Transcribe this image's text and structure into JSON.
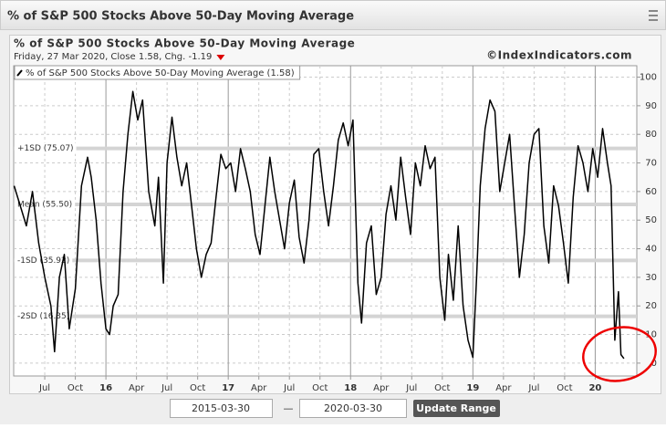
{
  "header": {
    "title": "% of S&P 500 Stocks Above 50-Day Moving Average"
  },
  "chart_data": {
    "type": "line",
    "title": "% of S&P 500 Stocks Above 50-Day Moving Average",
    "subtitle": "Friday, 27 Mar 2020, Close 1.58, Chg. -1.19",
    "watermark": "©IndexIndicators.com",
    "series": [
      {
        "name": "% of S&P 500 Stocks Above 50-Day Moving Average (1.58)",
        "color": "#000000",
        "x": [
          2015.25,
          2015.3,
          2015.35,
          2015.4,
          2015.45,
          2015.5,
          2015.55,
          2015.58,
          2015.62,
          2015.66,
          2015.7,
          2015.75,
          2015.8,
          2015.85,
          2015.88,
          2015.92,
          2015.96,
          2016.0,
          2016.03,
          2016.06,
          2016.1,
          2016.14,
          2016.18,
          2016.22,
          2016.26,
          2016.3,
          2016.35,
          2016.4,
          2016.43,
          2016.47,
          2016.5,
          2016.54,
          2016.58,
          2016.62,
          2016.66,
          2016.7,
          2016.74,
          2016.78,
          2016.82,
          2016.86,
          2016.9,
          2016.94,
          2016.98,
          2017.02,
          2017.06,
          2017.1,
          2017.14,
          2017.18,
          2017.22,
          2017.26,
          2017.3,
          2017.34,
          2017.38,
          2017.42,
          2017.46,
          2017.5,
          2017.54,
          2017.58,
          2017.62,
          2017.66,
          2017.7,
          2017.74,
          2017.78,
          2017.82,
          2017.86,
          2017.9,
          2017.94,
          2017.98,
          2018.02,
          2018.06,
          2018.09,
          2018.13,
          2018.17,
          2018.21,
          2018.25,
          2018.29,
          2018.33,
          2018.37,
          2018.41,
          2018.45,
          2018.49,
          2018.53,
          2018.57,
          2018.61,
          2018.65,
          2018.69,
          2018.73,
          2018.77,
          2018.8,
          2018.84,
          2018.88,
          2018.92,
          2018.96,
          2019.0,
          2019.03,
          2019.06,
          2019.1,
          2019.14,
          2019.18,
          2019.22,
          2019.26,
          2019.3,
          2019.34,
          2019.38,
          2019.42,
          2019.46,
          2019.5,
          2019.54,
          2019.58,
          2019.62,
          2019.66,
          2019.7,
          2019.74,
          2019.78,
          2019.82,
          2019.86,
          2019.9,
          2019.94,
          2019.98,
          2020.02,
          2020.06,
          2020.1,
          2020.13,
          2020.16,
          2020.19,
          2020.21,
          2020.235
        ],
        "values": [
          62,
          55,
          48,
          60,
          42,
          30,
          20,
          4,
          30,
          38,
          12,
          26,
          62,
          72,
          65,
          50,
          28,
          12,
          10,
          20,
          24,
          60,
          80,
          95,
          85,
          92,
          60,
          48,
          65,
          28,
          70,
          86,
          72,
          62,
          70,
          55,
          40,
          30,
          38,
          42,
          58,
          73,
          68,
          70,
          60,
          75,
          68,
          60,
          45,
          38,
          55,
          72,
          60,
          50,
          40,
          56,
          64,
          44,
          35,
          50,
          73,
          75,
          60,
          48,
          62,
          78,
          84,
          76,
          85,
          28,
          14,
          42,
          48,
          24,
          30,
          52,
          62,
          50,
          72,
          58,
          45,
          70,
          62,
          76,
          68,
          72,
          30,
          15,
          38,
          22,
          48,
          20,
          8,
          2,
          30,
          62,
          82,
          92,
          88,
          60,
          70,
          80,
          55,
          30,
          45,
          70,
          80,
          82,
          48,
          35,
          62,
          55,
          42,
          28,
          58,
          76,
          70,
          60,
          75,
          65,
          82,
          70,
          62,
          8,
          25,
          3,
          1.58
        ]
      }
    ],
    "bands": [
      {
        "label": "+1SD (75.07)",
        "value": 75.07
      },
      {
        "label": "Mean (55.50)",
        "value": 55.5
      },
      {
        "label": "-1SD (35.92)",
        "value": 35.92
      },
      {
        "label": "-2SD (16.35)",
        "value": 16.35
      }
    ],
    "xlim": [
      2015.246,
      2020.34
    ],
    "xticks": [
      {
        "value": 2015.5,
        "label": "Jul"
      },
      {
        "value": 2015.75,
        "label": "Oct"
      },
      {
        "value": 2016,
        "label": "16"
      },
      {
        "value": 2016.25,
        "label": "Apr"
      },
      {
        "value": 2016.5,
        "label": "Jul"
      },
      {
        "value": 2016.75,
        "label": "Oct"
      },
      {
        "value": 2017,
        "label": "17"
      },
      {
        "value": 2017.25,
        "label": "Apr"
      },
      {
        "value": 2017.5,
        "label": "Jul"
      },
      {
        "value": 2017.75,
        "label": "Oct"
      },
      {
        "value": 2018,
        "label": "18"
      },
      {
        "value": 2018.25,
        "label": "Apr"
      },
      {
        "value": 2018.5,
        "label": "Jul"
      },
      {
        "value": 2018.75,
        "label": "Oct"
      },
      {
        "value": 2019,
        "label": "19"
      },
      {
        "value": 2019.25,
        "label": "Apr"
      },
      {
        "value": 2019.5,
        "label": "Jul"
      },
      {
        "value": 2019.75,
        "label": "Oct"
      },
      {
        "value": 2020,
        "label": "20"
      }
    ],
    "ylim": [
      -4.5,
      104
    ],
    "yticks": [
      0,
      10,
      20,
      30,
      40,
      50,
      60,
      70,
      80,
      90,
      100
    ],
    "grid": true
  },
  "controls": {
    "start": "2015-03-30",
    "separator": "—",
    "end": "2020-03-30",
    "button": "Update Range"
  }
}
